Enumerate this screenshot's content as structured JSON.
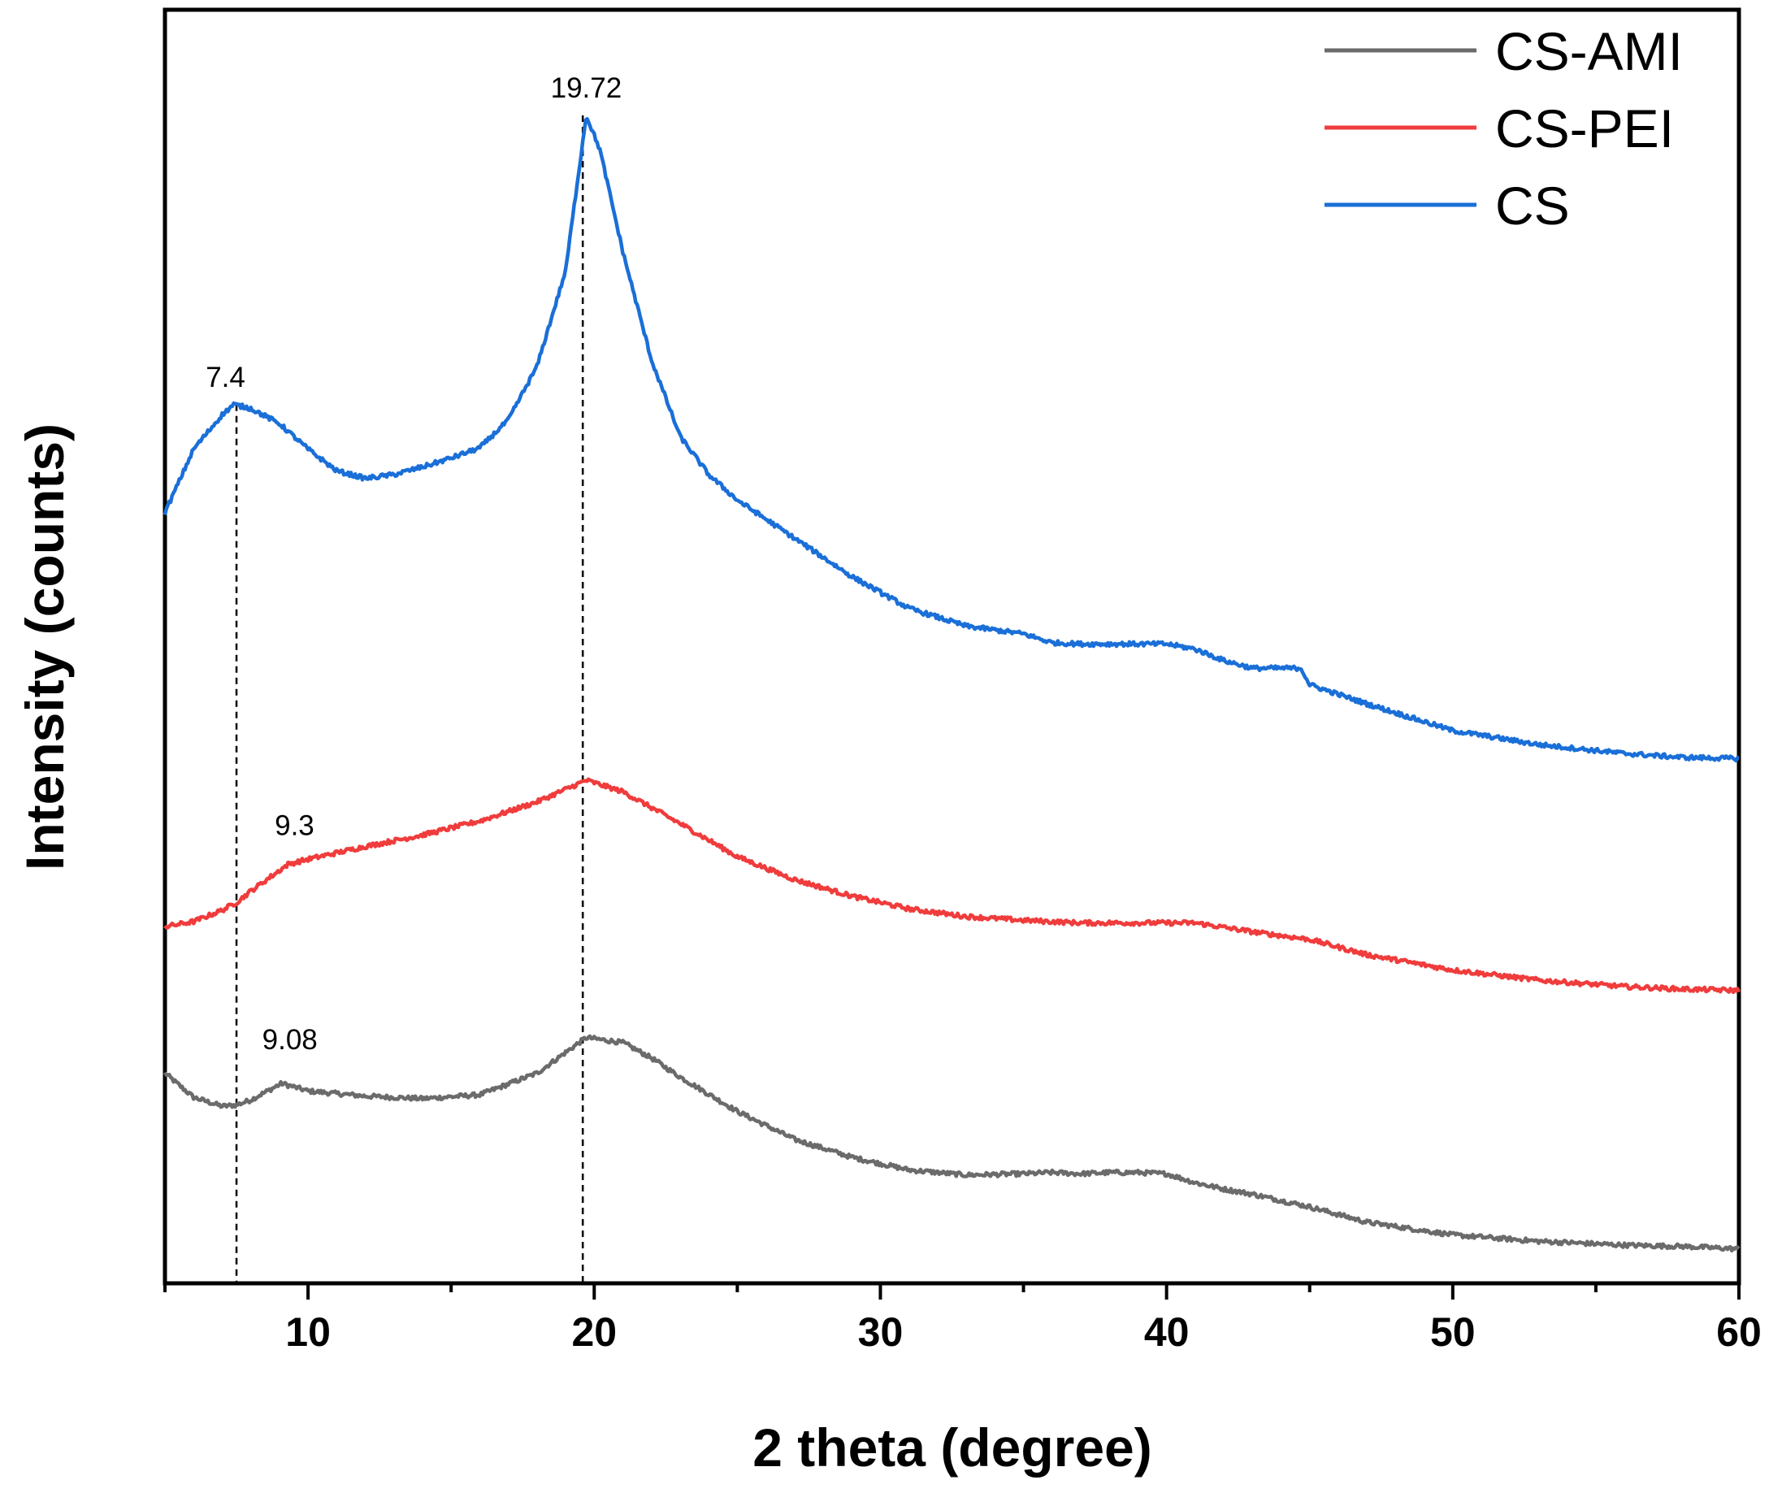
{
  "chart_data": {
    "type": "line",
    "xlabel": "2 theta (degree)",
    "ylabel": "Intensity (counts)",
    "xlim": [
      5,
      60
    ],
    "ylim": [
      0,
      100
    ],
    "xticks": [
      10,
      20,
      30,
      40,
      50,
      60
    ],
    "xticks_minor": [
      5,
      15,
      25,
      35,
      45,
      55
    ],
    "grid": false,
    "legend_position": "top-right",
    "series": [
      {
        "name": "CS-AMI",
        "color": "#6b6b6b",
        "x": [
          5,
          6,
          7,
          7.5,
          8,
          9.08,
          10,
          12,
          14,
          16,
          18,
          19.72,
          21,
          22,
          23,
          25,
          27,
          29,
          31,
          33,
          35,
          36,
          37,
          38,
          39,
          40,
          41,
          42,
          43,
          45,
          47,
          50,
          53,
          56,
          58,
          60
        ],
        "values": [
          16.5,
          14.6,
          13.9,
          14.0,
          14.4,
          15.7,
          15.1,
          14.7,
          14.5,
          14.8,
          16.5,
          19.3,
          18.9,
          17.7,
          16.2,
          13.5,
          11.3,
          9.9,
          8.9,
          8.5,
          8.6,
          8.7,
          8.6,
          8.7,
          8.7,
          8.6,
          7.9,
          7.4,
          7.0,
          6.0,
          4.8,
          3.8,
          3.3,
          3.0,
          2.9,
          2.7
        ]
      },
      {
        "name": "CS-PEI",
        "color": "#f03c3c",
        "x": [
          5,
          6,
          7,
          7.5,
          8,
          9.3,
          10,
          12,
          14,
          16,
          18,
          19.72,
          21,
          23,
          25,
          27,
          29,
          31,
          33,
          35,
          37,
          39,
          41,
          43,
          45,
          47,
          50,
          53,
          56,
          58,
          60
        ],
        "values": [
          28.0,
          28.4,
          29.3,
          29.9,
          30.8,
          32.9,
          33.3,
          34.3,
          35.2,
          36.3,
          37.8,
          39.5,
          38.6,
          36.1,
          33.5,
          31.7,
          30.4,
          29.4,
          28.8,
          28.5,
          28.3,
          28.3,
          28.3,
          27.6,
          27.0,
          25.8,
          24.6,
          23.8,
          23.3,
          23.1,
          23.0
        ]
      },
      {
        "name": "CS",
        "color": "#1a6fd8",
        "x": [
          5,
          6,
          7,
          7.4,
          8,
          9,
          10,
          11,
          12,
          13,
          14,
          15,
          16,
          17,
          18,
          19,
          19.72,
          20.2,
          21,
          22,
          23,
          24,
          25,
          27,
          29,
          31,
          33,
          35,
          36,
          37,
          38,
          39,
          40,
          41,
          42,
          43,
          44,
          44.7,
          45,
          47,
          50,
          53,
          56,
          58,
          60
        ],
        "values": [
          60.5,
          65.5,
          68.2,
          69.0,
          68.7,
          67.5,
          65.5,
          63.8,
          63.2,
          63.5,
          64.1,
          64.8,
          65.6,
          67.8,
          72.0,
          79.5,
          91.7,
          89.0,
          81.0,
          72.5,
          66.5,
          63.5,
          61.5,
          58.5,
          55.5,
          53.0,
          51.6,
          51.0,
          50.3,
          50.2,
          50.2,
          50.2,
          50.2,
          49.8,
          48.9,
          48.3,
          48.3,
          48.3,
          47.0,
          45.5,
          43.4,
          42.3,
          41.6,
          41.3,
          41.2
        ]
      }
    ],
    "annotations": [
      {
        "label": "19.72",
        "x": 19.72,
        "y": 91.7
      },
      {
        "label": "7.4",
        "x": 7.4,
        "y": 69.0
      },
      {
        "label": "9.3",
        "x": 9.3,
        "y": 32.9
      },
      {
        "label": "9.08",
        "x": 9.08,
        "y": 15.7
      }
    ],
    "reference_lines": [
      {
        "x": 7.5,
        "y_top": 69.0
      },
      {
        "x": 19.6,
        "y_top": 91.7
      }
    ]
  }
}
